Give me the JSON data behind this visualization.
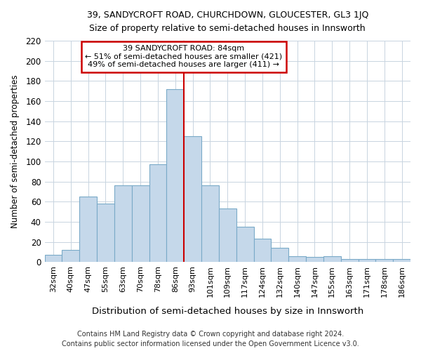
{
  "title1": "39, SANDYCROFT ROAD, CHURCHDOWN, GLOUCESTER, GL3 1JQ",
  "title2": "Size of property relative to semi-detached houses in Innsworth",
  "xlabel": "Distribution of semi-detached houses by size in Innsworth",
  "ylabel": "Number of semi-detached properties",
  "categories": [
    "32sqm",
    "40sqm",
    "47sqm",
    "55sqm",
    "63sqm",
    "70sqm",
    "78sqm",
    "86sqm",
    "93sqm",
    "101sqm",
    "109sqm",
    "117sqm",
    "124sqm",
    "132sqm",
    "140sqm",
    "147sqm",
    "155sqm",
    "163sqm",
    "171sqm",
    "178sqm",
    "186sqm"
  ],
  "values": [
    7,
    12,
    65,
    58,
    76,
    76,
    97,
    172,
    125,
    76,
    53,
    35,
    23,
    14,
    6,
    5,
    6,
    3,
    3,
    3,
    3
  ],
  "bar_color": "#c5d8ea",
  "bar_edge_color": "#7aaac8",
  "vline_x": 7.5,
  "vline_color": "#cc0000",
  "annotation_box_color": "#cc0000",
  "annotation_title": "39 SANDYCROFT ROAD: 84sqm",
  "annotation_line1": "← 51% of semi-detached houses are smaller (421)",
  "annotation_line2": "49% of semi-detached houses are larger (411) →",
  "ylim": [
    0,
    220
  ],
  "yticks": [
    0,
    20,
    40,
    60,
    80,
    100,
    120,
    140,
    160,
    180,
    200,
    220
  ],
  "footer1": "Contains HM Land Registry data © Crown copyright and database right 2024.",
  "footer2": "Contains public sector information licensed under the Open Government Licence v3.0.",
  "bg_color": "#ffffff",
  "plot_bg_color": "#ffffff",
  "grid_color": "#c8d4e0"
}
